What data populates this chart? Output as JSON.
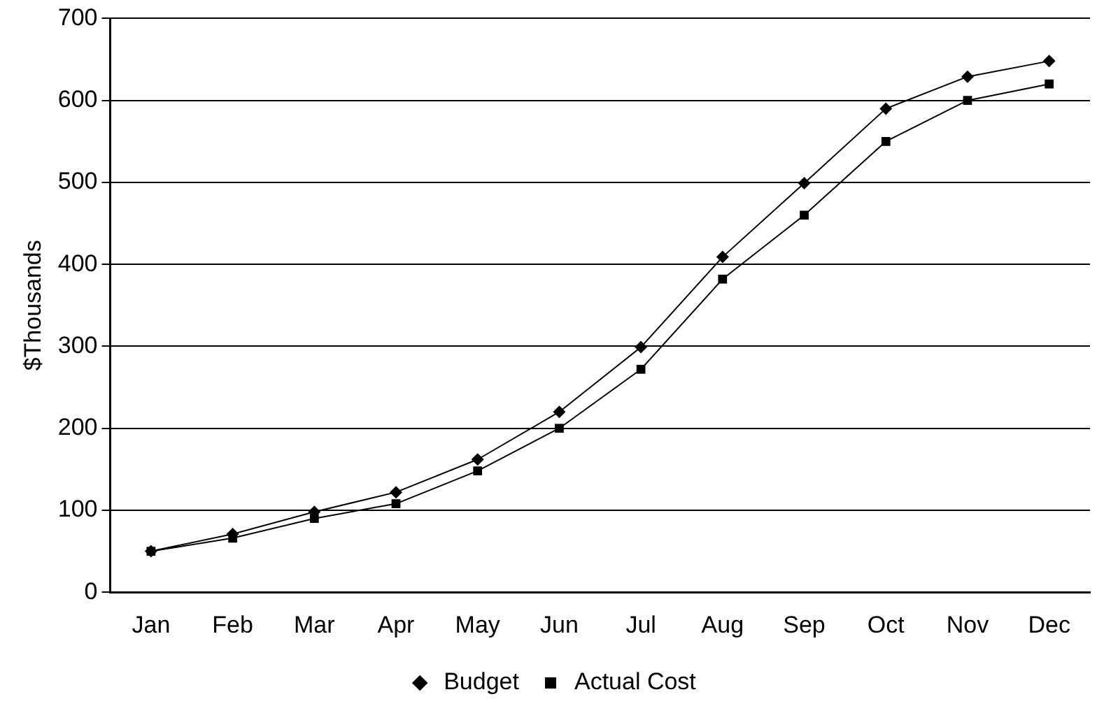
{
  "chart_data": {
    "type": "line",
    "ylabel": "$Thousands",
    "categories": [
      "Jan",
      "Feb",
      "Mar",
      "Apr",
      "May",
      "Jun",
      "Jul",
      "Aug",
      "Sep",
      "Oct",
      "Nov",
      "Dec"
    ],
    "series": [
      {
        "name": "Budget",
        "color": "#000000",
        "marker": "diamond",
        "values": [
          50,
          71,
          98,
          122,
          162,
          220,
          299,
          409,
          499,
          590,
          629,
          648
        ]
      },
      {
        "name": "Actual Cost",
        "color": "#000000",
        "marker": "square",
        "values": [
          50,
          66,
          90,
          108,
          148,
          200,
          272,
          382,
          460,
          550,
          600,
          620
        ]
      }
    ],
    "ylim": [
      0,
      700
    ],
    "yticks": [
      0,
      100,
      200,
      300,
      400,
      500,
      600,
      700
    ],
    "grid": "y",
    "legend": "bottom",
    "line_style": "solid"
  }
}
